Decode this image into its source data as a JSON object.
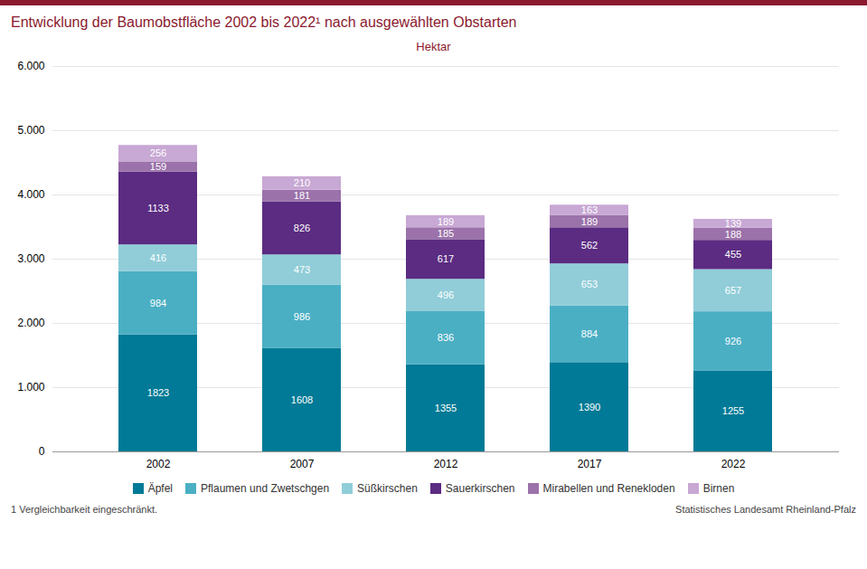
{
  "chart_data": {
    "type": "bar",
    "title": "Entwicklung der Baumobstfläche 2002 bis 2022¹ nach ausgewählten Obstarten",
    "ylabel": "Hektar",
    "categories": [
      "2002",
      "2007",
      "2012",
      "2017",
      "2022"
    ],
    "series": [
      {
        "name": "Äpfel",
        "color": "#007a96",
        "values": [
          1823,
          1608,
          1355,
          1390,
          1255
        ]
      },
      {
        "name": "Pflaumen und Zwetschgen",
        "color": "#4bafc4",
        "values": [
          984,
          986,
          836,
          884,
          926
        ]
      },
      {
        "name": "Süßkirschen",
        "color": "#90cdd8",
        "values": [
          416,
          473,
          496,
          653,
          657
        ]
      },
      {
        "name": "Sauerkirschen",
        "color": "#5b2c82",
        "values": [
          1133,
          826,
          617,
          562,
          455
        ]
      },
      {
        "name": "Mirabellen und Renekloden",
        "color": "#9b72aa",
        "values": [
          159,
          181,
          185,
          189,
          188
        ]
      },
      {
        "name": "Birnen",
        "color": "#c8a8d4",
        "values": [
          256,
          210,
          189,
          163,
          139
        ]
      }
    ],
    "stacked": true,
    "data_labels": true,
    "grid": true,
    "legend": "bottom",
    "ylim": [
      0,
      6000
    ],
    "yticks": [
      0,
      {
        "value": 1000,
        "label": "1.000"
      },
      {
        "value": 2000,
        "label": "2.000"
      },
      {
        "value": 3000,
        "label": "3.000"
      },
      {
        "value": 4000,
        "label": "4.000"
      },
      {
        "value": 5000,
        "label": "5.000"
      },
      {
        "value": 6000,
        "label": "6.000"
      }
    ],
    "annotations": [
      "1 Vergleichbarkeit eingeschränkt.",
      "Statistisches Landesamt Rheinland-Pfalz"
    ]
  }
}
